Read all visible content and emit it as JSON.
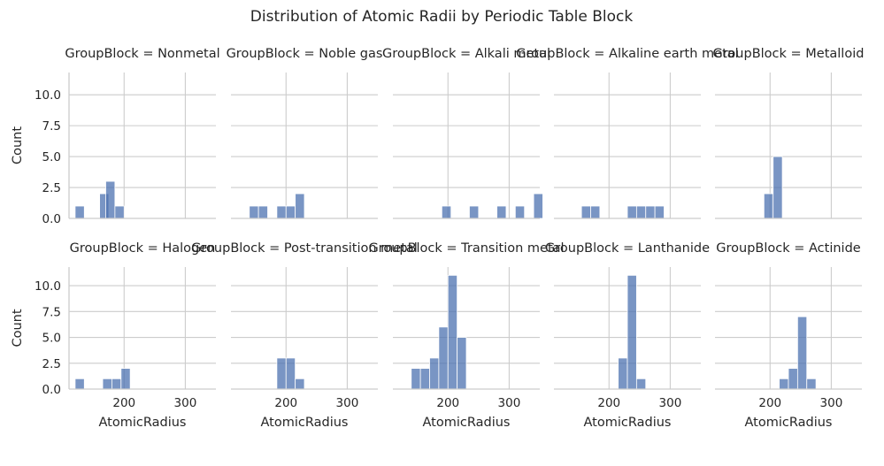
{
  "chart_data": {
    "type": "histogram-facet-grid",
    "title": "Distribution of Atomic Radii by Periodic Table Block",
    "xlabel": "AtomicRadius",
    "ylabel": "Count",
    "xlim": [
      110,
      350
    ],
    "ylim": [
      0,
      11.8
    ],
    "xticks": [
      200,
      300
    ],
    "xtick_labels": [
      "200",
      "300"
    ],
    "yticks": [
      0,
      2.5,
      5,
      7.5,
      10
    ],
    "ytick_labels": [
      "0.0",
      "2.5",
      "5.0",
      "7.5",
      "10.0"
    ],
    "bin_width": 15,
    "panels": [
      {
        "title": "GroupBlock = Nonmetal",
        "bins": [
          [
            120,
            1
          ],
          [
            160,
            2
          ],
          [
            170,
            3
          ],
          [
            185,
            1
          ]
        ]
      },
      {
        "title": "GroupBlock = Noble gas",
        "bins": [
          [
            140,
            1
          ],
          [
            155,
            1
          ],
          [
            185,
            1
          ],
          [
            200,
            1
          ],
          [
            215,
            2
          ]
        ]
      },
      {
        "title": "GroupBlock = Alkali metal",
        "bins": [
          [
            190,
            1
          ],
          [
            235,
            1
          ],
          [
            280,
            1
          ],
          [
            310,
            1
          ],
          [
            340,
            2
          ]
        ]
      },
      {
        "title": "GroupBlock = Alkaline earth metal",
        "bins": [
          [
            155,
            1
          ],
          [
            170,
            1
          ],
          [
            230,
            1
          ],
          [
            245,
            1
          ],
          [
            260,
            1
          ],
          [
            275,
            1
          ]
        ]
      },
      {
        "title": "GroupBlock = Metalloid",
        "bins": [
          [
            190,
            2
          ],
          [
            205,
            5
          ]
        ]
      },
      {
        "title": "GroupBlock = Halogen",
        "bins": [
          [
            120,
            1
          ],
          [
            165,
            1
          ],
          [
            180,
            1
          ],
          [
            195,
            2
          ]
        ]
      },
      {
        "title": "GroupBlock = Post-transition metal",
        "bins": [
          [
            185,
            3
          ],
          [
            200,
            3
          ],
          [
            215,
            1
          ]
        ]
      },
      {
        "title": "GroupBlock = Transition metal",
        "bins": [
          [
            140,
            2
          ],
          [
            155,
            2
          ],
          [
            170,
            3
          ],
          [
            185,
            6
          ],
          [
            200,
            11
          ],
          [
            215,
            5
          ]
        ]
      },
      {
        "title": "GroupBlock = Lanthanide",
        "bins": [
          [
            215,
            3
          ],
          [
            230,
            11
          ],
          [
            245,
            1
          ]
        ]
      },
      {
        "title": "GroupBlock = Actinide",
        "bins": [
          [
            215,
            1
          ],
          [
            230,
            2
          ],
          [
            245,
            7
          ],
          [
            260,
            1
          ]
        ]
      }
    ]
  }
}
